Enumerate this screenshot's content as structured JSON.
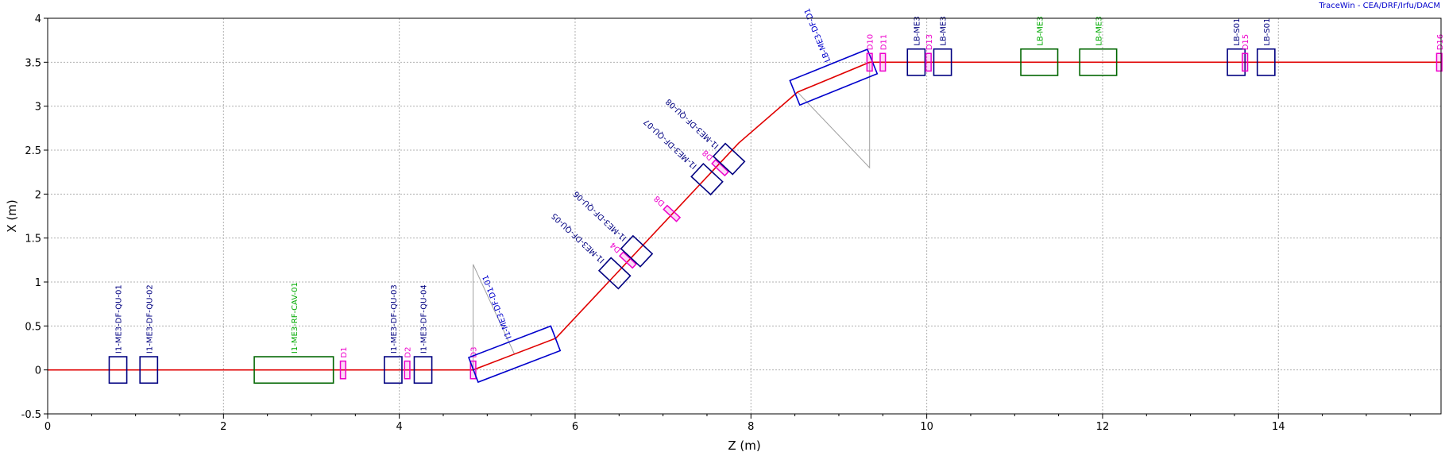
{
  "credit": "TraceWin - CEA/DRF/Irfu/DACM",
  "colors": {
    "beam": "#e00000",
    "quad": "#000080",
    "dipole": "#0000cc",
    "cavity": "#006600",
    "diag": "#ee00cc",
    "grid": "#b0b0b0",
    "guide": "#a0a0a0",
    "quad_label": "#000080",
    "dipole_label": "#0000cc",
    "cavity_label": "#00aa00",
    "diag_label": "#ee00cc"
  },
  "chart_data": {
    "type": "beamline_layout",
    "title": "",
    "xlabel": "Z (m)",
    "ylabel": "X (m)",
    "xlim": [
      0,
      15.85
    ],
    "ylim": [
      -0.5,
      4
    ],
    "xticks": [
      0,
      2,
      4,
      6,
      8,
      10,
      12,
      14
    ],
    "yticks": [
      -0.5,
      0,
      0.5,
      1,
      1.5,
      2,
      2.5,
      3,
      3.5,
      4
    ],
    "ytick_labels": [
      "-0.5",
      "0",
      "0.5",
      "1",
      "1.5",
      "2",
      "2.5",
      "3",
      "3.5",
      "4"
    ],
    "grid": true,
    "beam_path": [
      [
        0,
        0
      ],
      [
        4.84,
        0
      ],
      [
        5.78,
        0.36
      ],
      [
        7.86,
        2.58
      ],
      [
        8.53,
        3.16
      ],
      [
        9.35,
        3.5
      ],
      [
        15.85,
        3.5
      ]
    ],
    "elements": [
      {
        "kind": "quad",
        "label": "I1-ME3-DF-QU-01",
        "z": 0.8,
        "x": 0,
        "len": 0.2,
        "hw": 0.15,
        "angle": 0
      },
      {
        "kind": "quad",
        "label": "I1-ME3-DF-QU-02",
        "z": 1.15,
        "x": 0,
        "len": 0.2,
        "hw": 0.15,
        "angle": 0
      },
      {
        "kind": "cavity",
        "label": "I1-ME3-RF-CAV-01",
        "z": 2.8,
        "x": 0,
        "len": 0.9,
        "hw": 0.15,
        "angle": 0
      },
      {
        "kind": "diag",
        "label": "D1",
        "z": 3.36,
        "x": 0,
        "len": 0.06,
        "hw": 0.1,
        "angle": 0
      },
      {
        "kind": "quad",
        "label": "I1-ME3-DF-QU-03",
        "z": 3.93,
        "x": 0,
        "len": 0.2,
        "hw": 0.15,
        "angle": 0
      },
      {
        "kind": "diag",
        "label": "D2",
        "z": 4.09,
        "x": 0,
        "len": 0.06,
        "hw": 0.1,
        "angle": 0
      },
      {
        "kind": "quad",
        "label": "I1-ME3-DF-QU-04",
        "z": 4.27,
        "x": 0,
        "len": 0.2,
        "hw": 0.15,
        "angle": 0
      },
      {
        "kind": "diag",
        "label": "D3",
        "z": 4.84,
        "x": 0,
        "len": 0.06,
        "hw": 0.1,
        "angle": 0
      },
      {
        "kind": "dipole",
        "label": "I1-ME3-DF-D1-01",
        "z": 5.31,
        "x": 0.18,
        "len": 1.0,
        "hw": 0.15,
        "angle": 21
      },
      {
        "kind": "quad",
        "label": "I1-ME3-DF-QU-05",
        "z": 6.45,
        "x": 1.1,
        "len": 0.2,
        "hw": 0.15,
        "angle": 47
      },
      {
        "kind": "diag",
        "label": "D4",
        "z": 6.6,
        "x": 1.25,
        "len": 0.06,
        "hw": 0.1,
        "angle": 47
      },
      {
        "kind": "quad",
        "label": "I1-ME3-DF-QU-06",
        "z": 6.7,
        "x": 1.35,
        "len": 0.2,
        "hw": 0.15,
        "angle": 47
      },
      {
        "kind": "diag",
        "label": "D8",
        "z": 7.1,
        "x": 1.78,
        "len": 0.06,
        "hw": 0.1,
        "angle": 47
      },
      {
        "kind": "quad",
        "label": "I1-ME3-DF-QU-07",
        "z": 7.5,
        "x": 2.17,
        "len": 0.2,
        "hw": 0.15,
        "angle": 47
      },
      {
        "kind": "diag",
        "label": "D8",
        "z": 7.65,
        "x": 2.3,
        "len": 0.06,
        "hw": 0.1,
        "angle": 47
      },
      {
        "kind": "quad",
        "label": "I1-ME3-DF-QU-08",
        "z": 7.75,
        "x": 2.4,
        "len": 0.2,
        "hw": 0.15,
        "angle": 47
      },
      {
        "kind": "dipole",
        "label": "LB-ME3-DF-D1",
        "z": 8.94,
        "x": 3.33,
        "len": 0.95,
        "hw": 0.15,
        "angle": 22
      },
      {
        "kind": "diag",
        "label": "D10",
        "z": 9.35,
        "x": 3.5,
        "len": 0.06,
        "hw": 0.1,
        "angle": 0
      },
      {
        "kind": "diag",
        "label": "D11",
        "z": 9.5,
        "x": 3.5,
        "len": 0.06,
        "hw": 0.1,
        "angle": 0
      },
      {
        "kind": "quad",
        "label": "LB-ME3",
        "z": 9.88,
        "x": 3.5,
        "len": 0.2,
        "hw": 0.15,
        "angle": 0
      },
      {
        "kind": "diag",
        "label": "D13",
        "z": 10.02,
        "x": 3.5,
        "len": 0.06,
        "hw": 0.1,
        "angle": 0
      },
      {
        "kind": "quad",
        "label": "LB-ME3",
        "z": 10.18,
        "x": 3.5,
        "len": 0.2,
        "hw": 0.15,
        "angle": 0
      },
      {
        "kind": "cavity",
        "label": "LB-ME3",
        "z": 11.28,
        "x": 3.5,
        "len": 0.42,
        "hw": 0.15,
        "angle": 0
      },
      {
        "kind": "cavity",
        "label": "LB-ME3",
        "z": 11.95,
        "x": 3.5,
        "len": 0.42,
        "hw": 0.15,
        "angle": 0
      },
      {
        "kind": "quad",
        "label": "LB-S01",
        "z": 13.52,
        "x": 3.5,
        "len": 0.2,
        "hw": 0.15,
        "angle": 0
      },
      {
        "kind": "diag",
        "label": "D15",
        "z": 13.62,
        "x": 3.5,
        "len": 0.06,
        "hw": 0.1,
        "angle": 0
      },
      {
        "kind": "quad",
        "label": "LB-S01",
        "z": 13.86,
        "x": 3.5,
        "len": 0.2,
        "hw": 0.15,
        "angle": 0
      },
      {
        "kind": "diag",
        "label": "D16",
        "z": 15.83,
        "x": 3.5,
        "len": 0.06,
        "hw": 0.1,
        "angle": 0
      }
    ],
    "guide_triangles": [
      [
        [
          4.84,
          0
        ],
        [
          4.84,
          1.2
        ],
        [
          5.31,
          0.18
        ]
      ],
      [
        [
          8.53,
          3.16
        ],
        [
          9.35,
          2.3
        ],
        [
          9.35,
          3.5
        ]
      ]
    ]
  }
}
